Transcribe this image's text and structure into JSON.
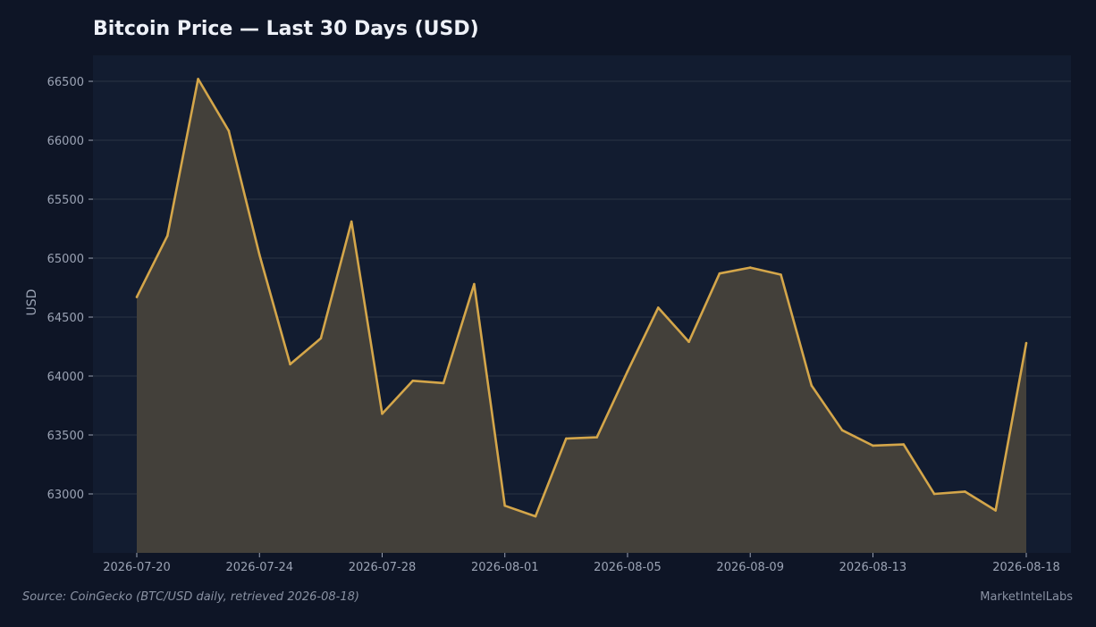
{
  "title": "Bitcoin Price — Last 30 Days (USD)",
  "source_note": "Source: CoinGecko (BTC/USD daily, retrieved 2026-08-18)",
  "brand": "MarketIntelLabs",
  "colors": {
    "background": "#0e1526",
    "plot_background": "#121c30",
    "line": "#d4a64a",
    "area_fill": "#43403a",
    "grid": "#2a3345",
    "text": "#9ba3b4"
  },
  "chart_data": {
    "type": "area",
    "title": "Bitcoin Price — Last 30 Days (USD)",
    "xlabel": "",
    "ylabel": "USD",
    "x": [
      "2026-07-20",
      "2026-07-21",
      "2026-07-22",
      "2026-07-23",
      "2026-07-24",
      "2026-07-25",
      "2026-07-26",
      "2026-07-27",
      "2026-07-28",
      "2026-07-29",
      "2026-07-30",
      "2026-07-31",
      "2026-08-01",
      "2026-08-02",
      "2026-08-03",
      "2026-08-04",
      "2026-08-05",
      "2026-08-06",
      "2026-08-07",
      "2026-08-08",
      "2026-08-09",
      "2026-08-10",
      "2026-08-11",
      "2026-08-12",
      "2026-08-13",
      "2026-08-14",
      "2026-08-15",
      "2026-08-16",
      "2026-08-17",
      "2026-08-18"
    ],
    "y": [
      64670,
      65190,
      66520,
      66080,
      65030,
      64100,
      64320,
      65310,
      63680,
      63960,
      63940,
      64780,
      62900,
      62810,
      63470,
      63480,
      64040,
      64580,
      64290,
      64870,
      64920,
      64860,
      63920,
      63540,
      63410,
      63420,
      63000,
      63020,
      62860,
      64280
    ],
    "ylim": [
      62500,
      66720
    ],
    "yticks": [
      63000,
      63500,
      64000,
      64500,
      65000,
      65500,
      66000,
      66500
    ],
    "xticks": [
      "2026-07-20",
      "2026-07-24",
      "2026-07-28",
      "2026-08-01",
      "2026-08-05",
      "2026-08-09",
      "2026-08-13",
      "2026-08-18"
    ],
    "grid": true,
    "legend": "none"
  }
}
